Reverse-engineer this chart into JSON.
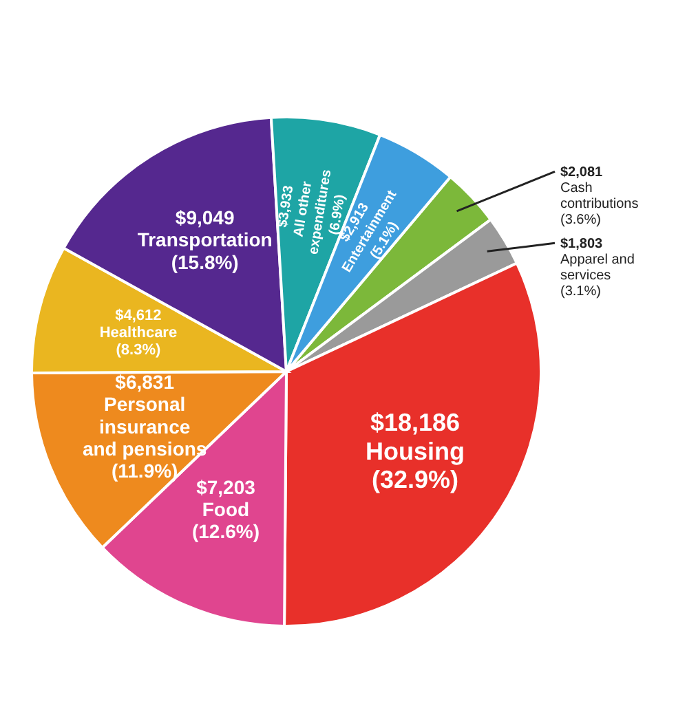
{
  "chart_data": {
    "type": "pie",
    "categories": [
      "Cash contributions (3.6%)",
      "Apparel and services (3.1%)",
      "Housing (32.9%)",
      "Food (12.6%)",
      "Personal insurance and pensions (11.9%)",
      "Healthcare (8.3%)",
      "Transportation (15.8%)",
      "All other expenditures (6.9%)",
      "Entertainment (5.1%)"
    ],
    "values": [
      2081,
      1803,
      18186,
      7203,
      6831,
      4612,
      9049,
      3933,
      2913
    ],
    "value_labels": [
      "$2,081",
      "$1,803",
      "$18,186",
      "$7,203",
      "$6,831",
      "$4,612",
      "$9,049",
      "$3,933",
      "$2,913"
    ],
    "colors": [
      "#7cb83a",
      "#9a9a9a",
      "#e8302a",
      "#e0458f",
      "#ee8a1e",
      "#eab620",
      "#55288f",
      "#1ea5a5",
      "#3e9ede"
    ]
  }
}
